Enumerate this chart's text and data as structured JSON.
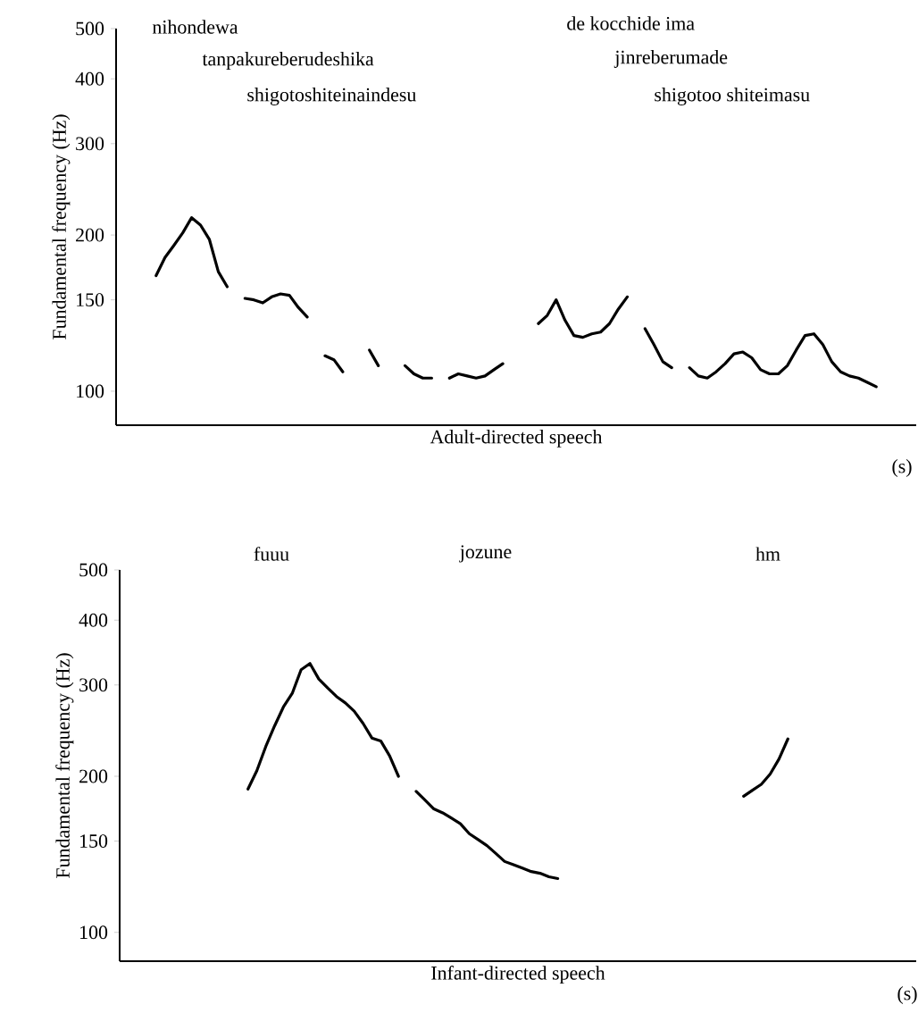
{
  "chart_data": [
    {
      "type": "line",
      "xlabel": "Adult-directed speech",
      "ylabel": "Fundamental frequency (Hz)",
      "log": "y",
      "color": "#000000",
      "annotations": [
        "nihondewa",
        "tanpakureberudeshika",
        "shigotoshiteinaindesu",
        "de kocchide ima",
        "jinreberumade",
        "shigotoo shiteimasu",
        "(s)"
      ],
      "ylim": [
        86,
        500
      ],
      "yticks": [
        100,
        150,
        200,
        300,
        400,
        500
      ],
      "categories": [
        null,
        null,
        null,
        null,
        null,
        null,
        null,
        null,
        null,
        null,
        null,
        null,
        null,
        null,
        null,
        null,
        null,
        null,
        null,
        null,
        null,
        null,
        null,
        null,
        null,
        null,
        null,
        null,
        null,
        null,
        null,
        null,
        null,
        null,
        null,
        null,
        null,
        null,
        null,
        null,
        null,
        null,
        null,
        null,
        null,
        null,
        null,
        null,
        null,
        null,
        null,
        null,
        null,
        null,
        null,
        null,
        null,
        null,
        null,
        null,
        null,
        null,
        null,
        null,
        null,
        null,
        null,
        null,
        null,
        null,
        null,
        null,
        null,
        null,
        null,
        null,
        null,
        null,
        null,
        null,
        null,
        null,
        null,
        null,
        null,
        null,
        null,
        null,
        null,
        null
      ],
      "values": [
        null,
        null,
        null,
        null,
        167,
        181,
        191,
        202,
        216,
        209,
        196,
        170,
        159,
        null,
        151,
        150,
        148,
        152,
        154,
        153,
        145,
        139,
        null,
        117,
        115,
        109,
        null,
        null,
        120,
        112,
        null,
        null,
        112,
        108,
        106,
        106,
        null,
        106,
        108,
        107,
        106,
        107,
        110,
        113,
        null,
        null,
        null,
        135,
        140,
        150,
        137,
        128,
        127,
        129,
        130,
        135,
        144,
        152,
        null,
        132,
        123,
        114,
        111,
        null,
        111,
        107,
        106,
        109,
        113,
        118,
        119,
        116,
        110,
        108,
        108,
        112,
        120,
        128,
        129,
        123,
        114,
        109,
        107,
        106,
        104,
        102,
        null,
        null,
        null,
        null
      ]
    },
    {
      "type": "line",
      "xlabel": "Infant-directed speech",
      "ylabel": "Fundamental frequency (Hz)",
      "log": "y",
      "color": "#000000",
      "annotations": [
        "fuuu",
        "jozune",
        "hm",
        "(s)"
      ],
      "ylim": [
        88,
        500
      ],
      "yticks": [
        100,
        150,
        200,
        300,
        400,
        500
      ],
      "categories": [
        null,
        null,
        null,
        null,
        null,
        null,
        null,
        null,
        null,
        null,
        null,
        null,
        null,
        null,
        null,
        null,
        null,
        null,
        null,
        null,
        null,
        null,
        null,
        null,
        null,
        null,
        null,
        null,
        null,
        null,
        null,
        null,
        null,
        null,
        null,
        null,
        null,
        null,
        null,
        null,
        null,
        null,
        null,
        null,
        null,
        null,
        null,
        null,
        null,
        null,
        null,
        null,
        null,
        null,
        null,
        null,
        null,
        null,
        null,
        null,
        null,
        null,
        null,
        null,
        null,
        null,
        null,
        null,
        null,
        null,
        null,
        null,
        null,
        null,
        null,
        null,
        null,
        null,
        null,
        null,
        null,
        null,
        null,
        null,
        null,
        null,
        null,
        null,
        null,
        null
      ],
      "values": [
        null,
        null,
        null,
        null,
        null,
        null,
        null,
        null,
        null,
        null,
        null,
        null,
        null,
        null,
        189,
        205,
        228,
        250,
        272,
        289,
        321,
        330,
        308,
        296,
        285,
        277,
        267,
        253,
        237,
        234,
        219,
        200,
        null,
        187,
        180,
        173,
        170,
        166,
        162,
        155,
        151,
        147,
        142,
        137,
        135,
        133,
        131,
        130,
        128,
        127,
        null,
        null,
        null,
        null,
        null,
        null,
        null,
        null,
        null,
        null,
        null,
        null,
        null,
        null,
        null,
        null,
        null,
        null,
        null,
        null,
        183,
        188,
        193,
        202,
        216,
        236,
        null,
        null,
        null,
        null,
        null,
        null,
        null,
        null,
        null,
        null,
        null,
        null,
        null,
        null
      ]
    }
  ]
}
